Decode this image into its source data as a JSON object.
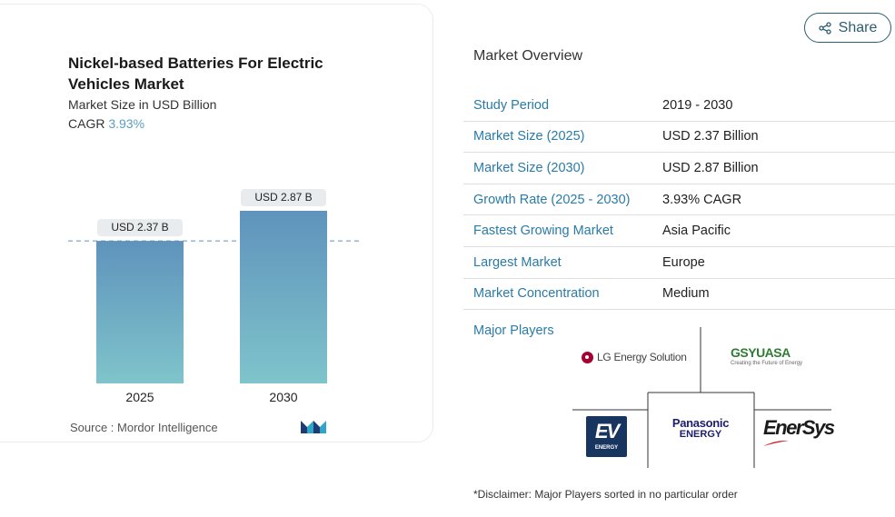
{
  "chart": {
    "title": "Nickel-based Batteries For Electric Vehicles Market",
    "subtitle": "Market Size in USD Billion",
    "cagr_label": "CAGR",
    "cagr_value": "3.93%",
    "source_label": "Source :",
    "source_value": "Mordor Intelligence"
  },
  "chart_data": {
    "type": "bar",
    "categories": [
      "2025",
      "2030"
    ],
    "values": [
      2.37,
      2.87
    ],
    "data_labels": [
      "USD 2.37 B",
      "USD 2.87 B"
    ],
    "title": "Nickel-based Batteries For Electric Vehicles Market",
    "ylabel": "Market Size in USD Billion",
    "ylim": [
      0,
      3.2
    ],
    "grid": false,
    "reference_line": 2.37
  },
  "colors": {
    "bar_top": "#5f93bc",
    "bar_bottom": "#7fc4cb",
    "accent_text": "#2a7ba8",
    "share_border": "#2b5d73"
  },
  "share": {
    "label": "Share",
    "icon": "share-icon"
  },
  "overview": {
    "title": "Market Overview",
    "rows": [
      {
        "label": "Study Period",
        "value": "2019 - 2030"
      },
      {
        "label": "Market Size (2025)",
        "value": "USD 2.37 Billion"
      },
      {
        "label": "Market Size (2030)",
        "value": "USD 2.87 Billion"
      },
      {
        "label": "Growth Rate (2025 - 2030)",
        "value": "3.93% CAGR"
      },
      {
        "label": "Fastest Growing Market",
        "value": "Asia Pacific"
      },
      {
        "label": "Largest Market",
        "value": "Europe"
      },
      {
        "label": "Market Concentration",
        "value": "Medium"
      }
    ]
  },
  "players": {
    "label": "Major Players",
    "lg": "LG Energy Solution",
    "gs_main_1": "GS",
    "gs_main_2": "YUASA",
    "gs_sub": "Creating the Future of Energy",
    "ev_letters": "EV",
    "ev_sub": "ENERGY",
    "panasonic_main": "Panasonic",
    "panasonic_sub": "ENERGY",
    "enersys": "EnerSys"
  },
  "disclaimer": "*Disclaimer: Major Players sorted in no particular order"
}
